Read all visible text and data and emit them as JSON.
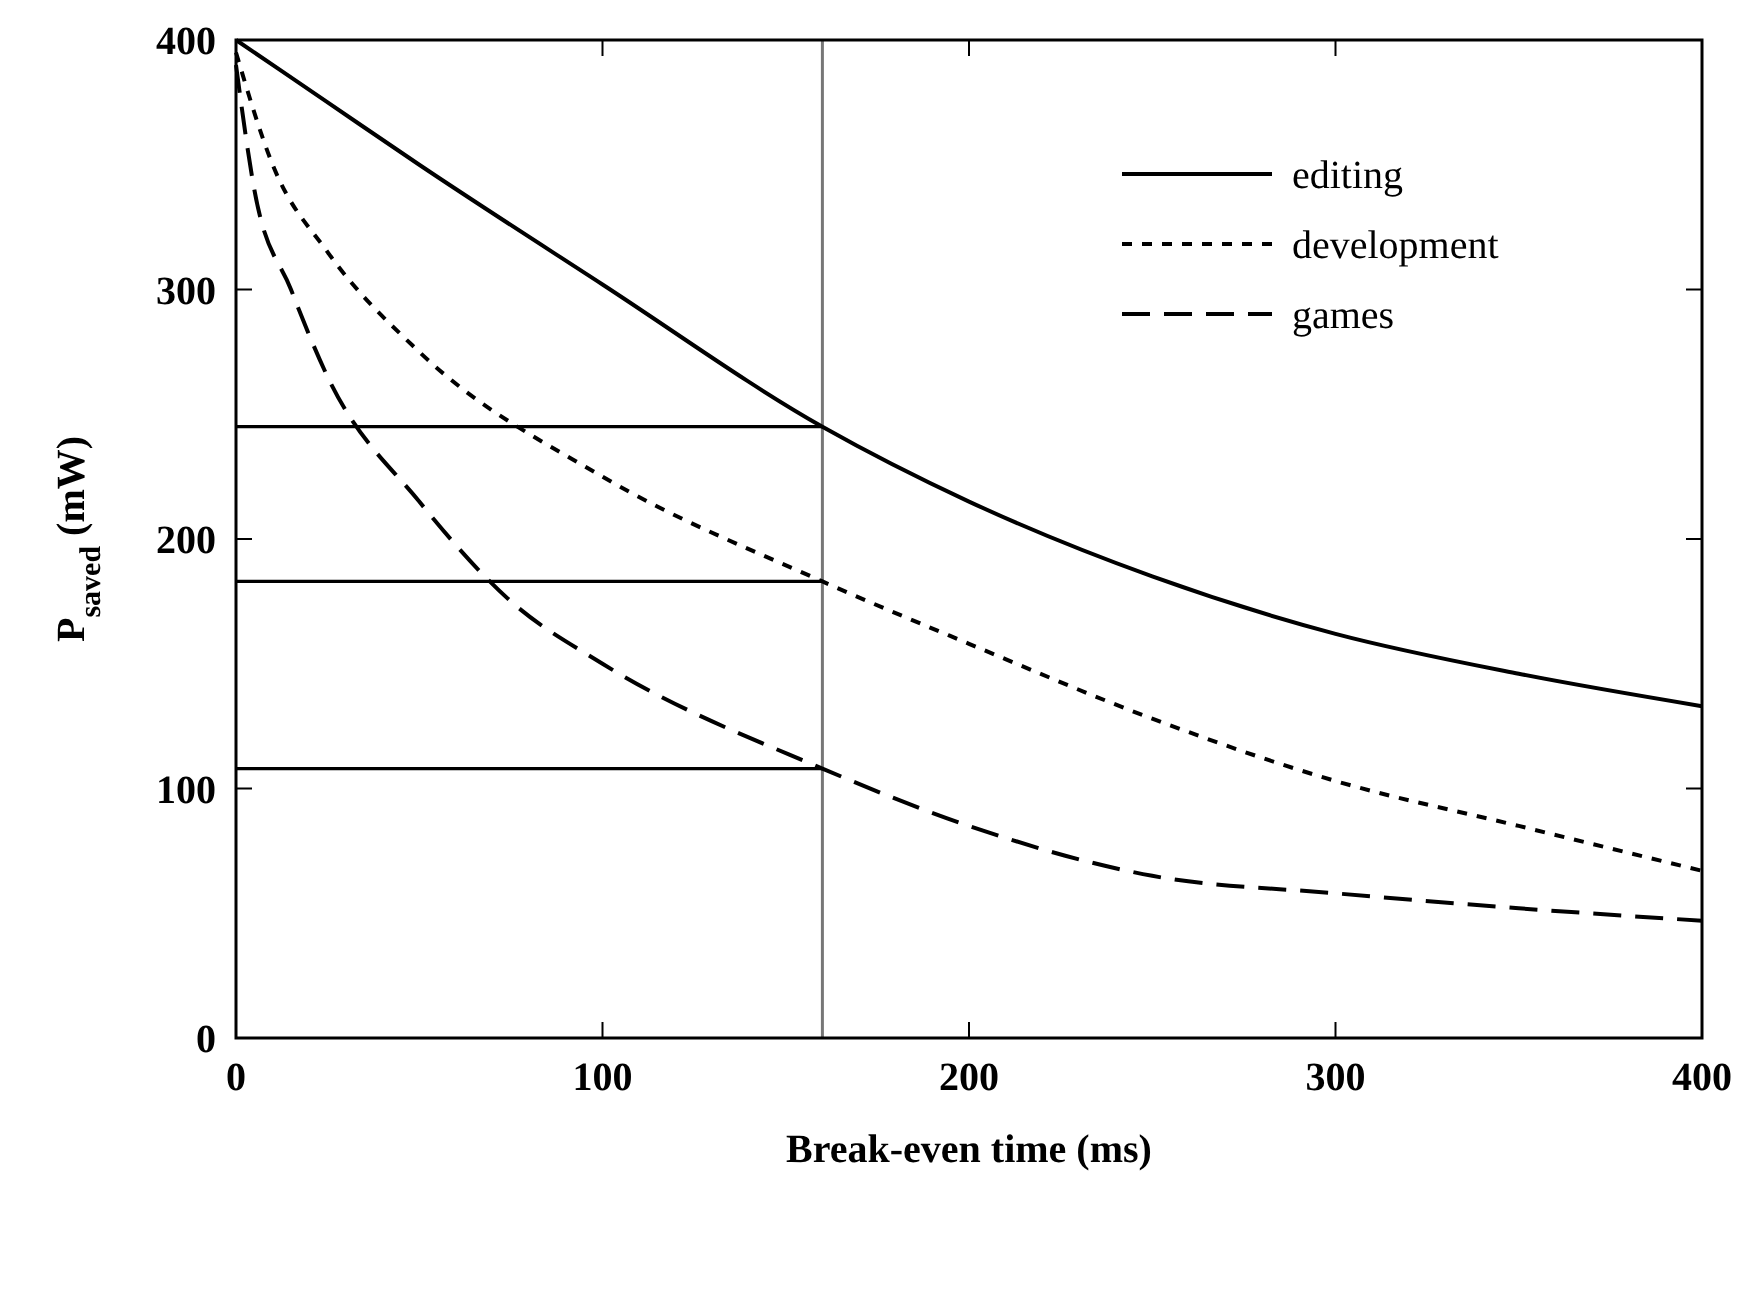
{
  "chart_data": {
    "type": "line",
    "xlabel": "Break-even time (ms)",
    "ylabel": "P$_{saved}$ (mW)",
    "xlim": [
      0,
      400
    ],
    "ylim": [
      0,
      400
    ],
    "xticks": [
      0,
      100,
      200,
      300,
      400
    ],
    "yticks": [
      0,
      100,
      200,
      300,
      400
    ],
    "grid": false,
    "legend": "top right",
    "marker": "none",
    "ref_lines": [
      {
        "axis": "x",
        "value": 160,
        "color": "#777777"
      }
    ],
    "series": [
      {
        "name": "editing",
        "color": "#000000",
        "line_style": "solid",
        "x": [
          0,
          25,
          50,
          100,
          160,
          200,
          250,
          300,
          350,
          400
        ],
        "values": [
          400,
          375,
          350,
          302,
          245,
          215,
          185,
          162,
          146,
          133
        ]
      },
      {
        "name": "development",
        "color": "#000000",
        "line_style": "dotted",
        "x": [
          0,
          10,
          25,
          50,
          100,
          160,
          200,
          250,
          300,
          350,
          400
        ],
        "values": [
          395,
          350,
          315,
          275,
          225,
          183,
          158,
          128,
          103,
          85,
          67
        ]
      },
      {
        "name": "games",
        "color": "#000000",
        "line_style": "dashed",
        "x": [
          0,
          5,
          15,
          25,
          50,
          75,
          100,
          160,
          200,
          250,
          300,
          350,
          400
        ],
        "values": [
          390,
          340,
          300,
          265,
          215,
          175,
          150,
          108,
          85,
          65,
          58,
          52,
          47
        ]
      },
      {
        "color": "#000000",
        "line_style": "solid",
        "x": [
          0,
          160
        ],
        "values": [
          245,
          245
        ]
      },
      {
        "color": "#000000",
        "line_style": "solid",
        "x": [
          0,
          160
        ],
        "values": [
          183,
          183
        ]
      },
      {
        "color": "#000000",
        "line_style": "solid",
        "x": [
          0,
          160
        ],
        "values": [
          108,
          108
        ]
      }
    ]
  }
}
